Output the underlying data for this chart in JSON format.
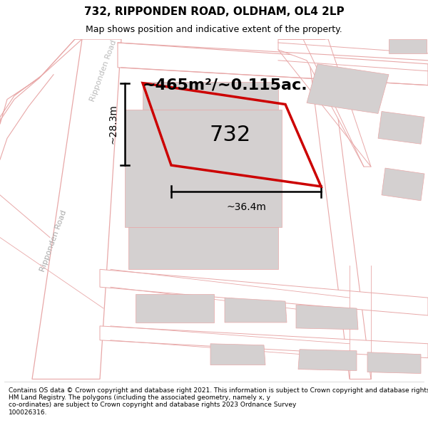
{
  "title": "732, RIPPONDEN ROAD, OLDHAM, OL4 2LP",
  "subtitle": "Map shows position and indicative extent of the property.",
  "area_text": "~465m²/~0.115ac.",
  "label_732": "732",
  "dim_width": "~36.4m",
  "dim_height": "~28.3m",
  "road_label_1": "Ripponden Road",
  "road_label_2": "Ripponden Road",
  "map_bg": "#f7f3f3",
  "road_color": "#e8a8a8",
  "property_color": "#cc0000",
  "gray_fill": "#d4d0d0",
  "white": "#ffffff",
  "footer_text": "Contains OS data © Crown copyright and database right 2021. This information is subject to Crown copyright and database rights 2023 and is reproduced with the permission of\nHM Land Registry. The polygons (including the associated geometry, namely x, y\nco-ordinates) are subject to Crown copyright and database rights 2023 Ordnance Survey\n100026316.",
  "title_fontsize": 11,
  "subtitle_fontsize": 9,
  "area_fontsize": 16,
  "label_fontsize": 22,
  "dim_fontsize": 10,
  "road_label_fontsize": 8
}
